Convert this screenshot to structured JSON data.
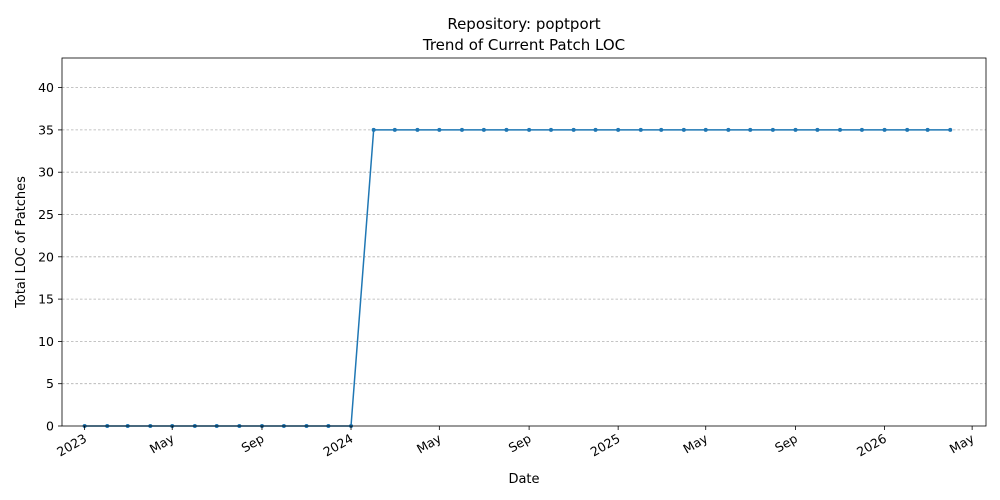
{
  "chart_data": {
    "type": "line",
    "title": "Repository: poptport",
    "subtitle": "Trend of Current Patch LOC",
    "xlabel": "Date",
    "ylabel": "Total LOC of Patches",
    "ylim": [
      0,
      43.5
    ],
    "yticks": [
      0,
      5,
      10,
      15,
      20,
      25,
      30,
      35,
      40
    ],
    "xlim": [
      "2022-12-01",
      "2026-05-20"
    ],
    "xticks": [
      {
        "date": "2023-01-01",
        "label": "2023"
      },
      {
        "date": "2023-05-01",
        "label": "May"
      },
      {
        "date": "2023-09-01",
        "label": "Sep"
      },
      {
        "date": "2024-01-01",
        "label": "2024"
      },
      {
        "date": "2024-05-01",
        "label": "May"
      },
      {
        "date": "2024-09-01",
        "label": "Sep"
      },
      {
        "date": "2025-01-01",
        "label": "2025"
      },
      {
        "date": "2025-05-01",
        "label": "May"
      },
      {
        "date": "2025-09-01",
        "label": "Sep"
      },
      {
        "date": "2026-01-01",
        "label": "2026"
      },
      {
        "date": "2026-05-01",
        "label": "May"
      }
    ],
    "grid": "y",
    "color": "#1f77b4",
    "series": [
      {
        "x": [
          "2023-01-01",
          "2023-02-01",
          "2023-03-01",
          "2023-04-01",
          "2023-05-01",
          "2023-06-01",
          "2023-07-01",
          "2023-08-01",
          "2023-09-01",
          "2023-10-01",
          "2023-11-01",
          "2023-12-01",
          "2024-01-01",
          "2024-02-01",
          "2024-03-01",
          "2024-04-01",
          "2024-05-01",
          "2024-06-01",
          "2024-07-01",
          "2024-08-01",
          "2024-09-01",
          "2024-10-01",
          "2024-11-01",
          "2024-12-01",
          "2025-01-01",
          "2025-02-01",
          "2025-03-01",
          "2025-04-01",
          "2025-05-01",
          "2025-06-01",
          "2025-07-01",
          "2025-08-01",
          "2025-09-01",
          "2025-10-01",
          "2025-11-01",
          "2025-12-01",
          "2026-01-01",
          "2026-02-01",
          "2026-03-01",
          "2026-04-01"
        ],
        "values": [
          0,
          0,
          0,
          0,
          0,
          0,
          0,
          0,
          0,
          0,
          0,
          0,
          0,
          35,
          35,
          35,
          35,
          35,
          35,
          35,
          35,
          35,
          35,
          35,
          35,
          35,
          35,
          35,
          35,
          35,
          35,
          35,
          35,
          35,
          35,
          35,
          35,
          35,
          35,
          35
        ]
      }
    ]
  }
}
